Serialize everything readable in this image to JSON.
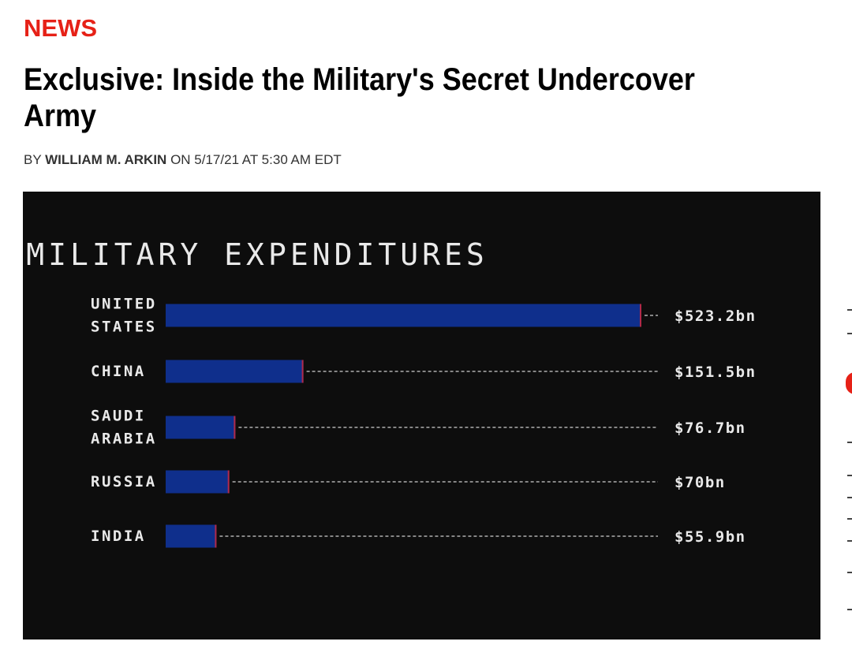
{
  "article": {
    "section": "NEWS",
    "headline": "Exclusive: Inside the Military's Secret Undercover Army",
    "byline_prefix": "BY",
    "author": "WILLIAM M. ARKIN",
    "byline_date": "ON 5/17/21 AT 5:30 AM EDT"
  },
  "colors": {
    "section_label": "#e62117",
    "bar": "#0f2f8c",
    "figure_background": "#0d0d0d"
  },
  "chart_data": {
    "type": "bar",
    "orientation": "horizontal",
    "title": "MILITARY EXPENDITURES",
    "categories": [
      [
        "UNITED",
        "STATES"
      ],
      [
        "CHINA"
      ],
      [
        "SAUDI",
        "ARABIA"
      ],
      [
        "RUSSIA"
      ],
      [
        "INDIA"
      ]
    ],
    "values": [
      523.2,
      151.5,
      76.7,
      70,
      55.9
    ],
    "unit": "bn USD",
    "value_labels": [
      "$523.2bn",
      "$151.5bn",
      "$76.7bn",
      "$70bn",
      "$55.9bn"
    ],
    "xlim": [
      0,
      523.2
    ],
    "grid": false,
    "legend": "none"
  }
}
